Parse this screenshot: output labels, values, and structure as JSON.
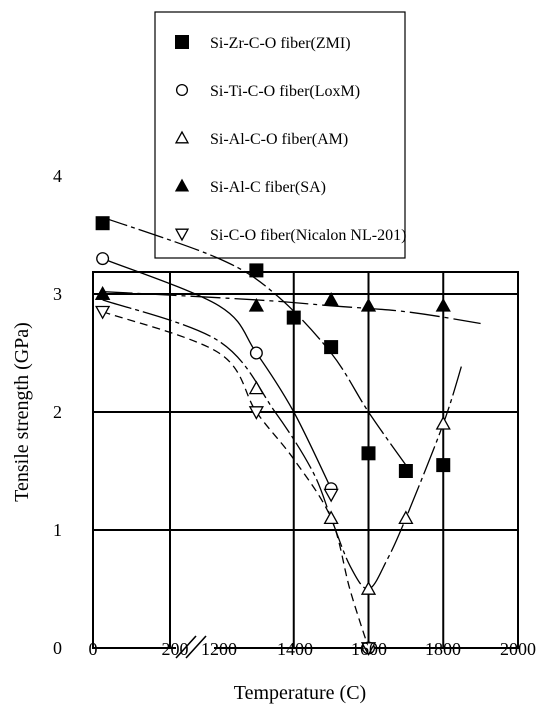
{
  "chart_data": {
    "type": "scatter",
    "title": "",
    "xlabel": "Temperature (C)",
    "ylabel": "Tensile strength (GPa)",
    "ylim": [
      0,
      4
    ],
    "x_axis_break": "between 200 and 1200",
    "x_tick_labels": [
      "0",
      "200",
      "1200",
      "1400",
      "1600",
      "1800",
      "2000"
    ],
    "y_tick_labels": [
      "0",
      "1",
      "2",
      "3",
      "4"
    ],
    "grid": true,
    "legend_position": "top",
    "series": [
      {
        "name": "Si-Zr-C-O fiber(ZMI)",
        "marker": "filled-square",
        "x": [
          25,
          1300,
          1400,
          1500,
          1600,
          1700,
          1800
        ],
        "y": [
          3.6,
          3.2,
          2.8,
          2.55,
          1.65,
          1.5,
          1.55
        ],
        "curve": [
          [
            25,
            3.65
          ],
          [
            1200,
            3.3
          ],
          [
            1350,
            3.0
          ],
          [
            1500,
            2.5
          ],
          [
            1600,
            2.0
          ],
          [
            1700,
            1.55
          ]
        ]
      },
      {
        "name": "Si-Ti-C-O fiber(LoxM)",
        "marker": "open-circle",
        "x": [
          25,
          1300,
          1500,
          1600
        ],
        "y": [
          3.3,
          2.5,
          1.35,
          0.0
        ],
        "curve": [
          [
            25,
            3.3
          ],
          [
            1200,
            2.9
          ],
          [
            1300,
            2.5
          ],
          [
            1400,
            2.0
          ],
          [
            1500,
            1.35
          ]
        ]
      },
      {
        "name": "Si-Al-C-O fiber(AM)",
        "marker": "open-triangle-up",
        "x": [
          25,
          1300,
          1500,
          1600,
          1700,
          1800
        ],
        "y": [
          3.0,
          2.2,
          1.1,
          0.5,
          1.1,
          1.9
        ],
        "curve": [
          [
            25,
            2.95
          ],
          [
            1200,
            2.6
          ],
          [
            1350,
            2.0
          ],
          [
            1450,
            1.5
          ],
          [
            1500,
            1.1
          ],
          [
            1550,
            0.7
          ],
          [
            1600,
            0.5
          ],
          [
            1650,
            0.75
          ],
          [
            1700,
            1.1
          ],
          [
            1800,
            1.9
          ],
          [
            1850,
            2.4
          ]
        ]
      },
      {
        "name": "Si-Al-C fiber(SA)",
        "marker": "filled-triangle-up",
        "x": [
          25,
          1300,
          1500,
          1600,
          1800
        ],
        "y": [
          3.0,
          2.9,
          2.95,
          2.9,
          2.9
        ],
        "curve": [
          [
            25,
            3.02
          ],
          [
            1300,
            2.95
          ],
          [
            1500,
            2.9
          ],
          [
            1700,
            2.85
          ],
          [
            1900,
            2.75
          ]
        ]
      },
      {
        "name": "Si-C-O fiber(Nicalon NL-201)",
        "marker": "open-triangle-down",
        "x": [
          25,
          1300,
          1500,
          1600
        ],
        "y": [
          2.85,
          2.0,
          1.3,
          0.0
        ],
        "curve": [
          [
            25,
            2.85
          ],
          [
            1200,
            2.5
          ],
          [
            1300,
            2.0
          ],
          [
            1400,
            1.6
          ],
          [
            1500,
            1.1
          ],
          [
            1550,
            0.5
          ],
          [
            1600,
            0.0
          ]
        ],
        "dashed": true
      }
    ]
  }
}
